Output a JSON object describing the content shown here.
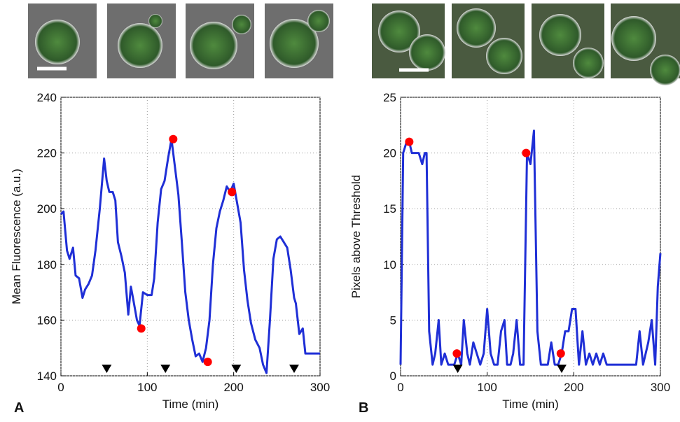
{
  "chart_data": [
    {
      "type": "line",
      "panel_label": "A",
      "xlabel": "Time (min)",
      "ylabel": "Mean Fluorescence (a.u.)",
      "x": [
        0,
        3,
        7,
        10,
        14,
        17,
        21,
        25,
        28,
        32,
        36,
        40,
        45,
        50,
        53,
        56,
        60,
        63,
        66,
        70,
        74,
        78,
        81,
        84,
        88,
        91,
        95,
        100,
        105,
        108,
        112,
        116,
        120,
        124,
        128,
        132,
        136,
        140,
        144,
        148,
        152,
        156,
        160,
        164,
        168,
        172,
        176,
        180,
        184,
        188,
        192,
        196,
        200,
        204,
        208,
        212,
        216,
        220,
        225,
        230,
        234,
        238,
        242,
        246,
        250,
        254,
        258,
        262,
        266,
        270,
        272,
        276,
        280,
        283,
        288,
        300
      ],
      "series": [
        {
          "color": "#1f2fd6",
          "values": [
            198,
            199,
            185,
            182,
            186,
            176,
            175,
            168,
            171,
            173,
            176,
            185,
            200,
            218,
            210,
            206,
            206,
            203,
            188,
            183,
            177,
            162,
            172,
            167,
            160,
            158,
            170,
            169,
            169,
            175,
            195,
            207,
            210,
            218,
            225,
            215,
            205,
            188,
            170,
            160,
            153,
            147,
            148,
            145,
            150,
            160,
            180,
            193,
            199,
            203,
            208,
            206,
            209,
            202,
            195,
            178,
            167,
            159,
            153,
            150,
            144,
            141,
            160,
            182,
            189,
            190,
            188,
            186,
            178,
            168,
            166,
            155,
            157,
            148,
            148,
            148
          ]
        }
      ],
      "markers": {
        "color": "#ff0000",
        "x": [
          93,
          130,
          170,
          198
        ],
        "values": [
          157,
          225,
          145,
          206
        ]
      },
      "events": {
        "color": "#000000",
        "x": [
          53,
          121,
          203,
          270
        ]
      },
      "xlim": [
        0,
        300
      ],
      "xticks": [
        0,
        100,
        200,
        300
      ],
      "ylim": [
        140,
        240
      ],
      "yticks": [
        140,
        160,
        180,
        200,
        220,
        240
      ],
      "grid": true
    },
    {
      "type": "line",
      "panel_label": "B",
      "xlabel": "Time (min)",
      "ylabel": "Pixels above Threshold",
      "x": [
        0,
        3,
        7,
        10,
        13,
        17,
        21,
        25,
        28,
        30,
        33,
        37,
        40,
        44,
        47,
        51,
        55,
        58,
        62,
        66,
        70,
        73,
        77,
        80,
        84,
        88,
        92,
        96,
        100,
        104,
        108,
        112,
        116,
        120,
        123,
        127,
        130,
        134,
        138,
        142,
        146,
        150,
        154,
        158,
        162,
        166,
        170,
        174,
        178,
        182,
        186,
        190,
        194,
        198,
        202,
        206,
        210,
        214,
        218,
        222,
        226,
        230,
        234,
        238,
        250,
        260,
        272,
        276,
        280,
        286,
        290,
        294,
        297,
        300
      ],
      "series": [
        {
          "color": "#1f2fd6",
          "values": [
            1,
            20,
            21,
            21,
            20,
            20,
            20,
            19,
            20,
            20,
            4,
            1,
            2,
            5,
            1,
            2,
            1,
            1,
            1,
            2,
            1,
            5,
            2,
            1,
            3,
            2,
            1,
            2,
            6,
            2,
            1,
            1,
            4,
            5,
            1,
            1,
            2,
            5,
            1,
            1,
            20,
            19,
            22,
            4,
            1,
            1,
            1,
            3,
            1,
            1,
            2,
            4,
            4,
            6,
            6,
            1,
            4,
            1,
            2,
            1,
            2,
            1,
            2,
            1,
            1,
            1,
            1,
            4,
            1,
            3,
            5,
            1,
            8,
            11
          ]
        }
      ],
      "markers": {
        "color": "#ff0000",
        "x": [
          10,
          65,
          145,
          185
        ],
        "values": [
          21,
          2,
          20,
          2
        ]
      },
      "events": {
        "color": "#000000",
        "x": [
          66,
          186
        ]
      },
      "xlim": [
        0,
        300
      ],
      "xticks": [
        0,
        100,
        200,
        300
      ],
      "ylim": [
        0,
        25
      ],
      "yticks": [
        0,
        5,
        10,
        15,
        20,
        25
      ],
      "grid": true
    }
  ]
}
